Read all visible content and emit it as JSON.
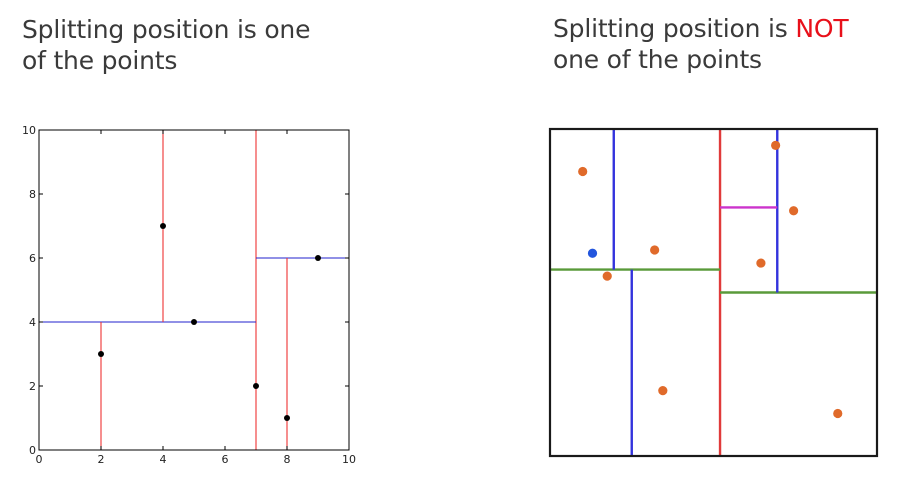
{
  "left_panel": {
    "title_line1": "Splitting position is one",
    "title_line2": "of the points",
    "chart_data": {
      "type": "scatter",
      "xlim": [
        0,
        10
      ],
      "ylim": [
        0,
        10
      ],
      "xticks": [
        "0",
        "2",
        "4",
        "6",
        "8",
        "10"
      ],
      "yticks": [
        "0",
        "2",
        "4",
        "6",
        "8",
        "10"
      ],
      "points": [
        {
          "x": 2,
          "y": 3
        },
        {
          "x": 4,
          "y": 7
        },
        {
          "x": 5,
          "y": 4
        },
        {
          "x": 7,
          "y": 2
        },
        {
          "x": 8,
          "y": 1
        },
        {
          "x": 9,
          "y": 6
        }
      ],
      "split_lines": [
        {
          "orient": "vertical",
          "at": 7,
          "from": 0,
          "to": 10,
          "color": "#ee3333"
        },
        {
          "orient": "horizontal",
          "at": 4,
          "from": 0,
          "to": 7,
          "color": "#2222cc"
        },
        {
          "orient": "horizontal",
          "at": 6,
          "from": 7,
          "to": 10,
          "color": "#2222cc"
        },
        {
          "orient": "vertical",
          "at": 2,
          "from": 0,
          "to": 4,
          "color": "#ee3333"
        },
        {
          "orient": "vertical",
          "at": 4,
          "from": 4,
          "to": 10,
          "color": "#ee3333"
        },
        {
          "orient": "vertical",
          "at": 8,
          "from": 0,
          "to": 6,
          "color": "#ee3333"
        }
      ],
      "point_color": "#000000"
    }
  },
  "right_panel": {
    "title_line1_prefix": "Splitting position is ",
    "title_line1_accent": "NOT",
    "title_line2": "one of the points",
    "accent_color": "#e8101a",
    "diagram": {
      "xlim": [
        0,
        10
      ],
      "ylim": [
        0,
        10
      ],
      "points": [
        {
          "x": 1.0,
          "y": 8.7,
          "color": "#e06a2a"
        },
        {
          "x": 1.3,
          "y": 6.2,
          "color": "#2255dd"
        },
        {
          "x": 1.75,
          "y": 5.5,
          "color": "#e06a2a"
        },
        {
          "x": 3.2,
          "y": 6.3,
          "color": "#e06a2a"
        },
        {
          "x": 3.45,
          "y": 2.0,
          "color": "#e06a2a"
        },
        {
          "x": 6.45,
          "y": 5.9,
          "color": "#e06a2a"
        },
        {
          "x": 6.9,
          "y": 9.5,
          "color": "#e06a2a"
        },
        {
          "x": 7.45,
          "y": 7.5,
          "color": "#e06a2a"
        },
        {
          "x": 8.8,
          "y": 1.3,
          "color": "#e06a2a"
        }
      ],
      "split_lines": [
        {
          "orient": "vertical",
          "at": 5.2,
          "from": 0,
          "to": 10,
          "color": "#e03a3a"
        },
        {
          "orient": "horizontal",
          "at": 5.7,
          "from": 0,
          "to": 5.2,
          "color": "#5a9a3a"
        },
        {
          "orient": "horizontal",
          "at": 5.0,
          "from": 5.2,
          "to": 10,
          "color": "#5a9a3a"
        },
        {
          "orient": "vertical",
          "at": 1.95,
          "from": 5.7,
          "to": 10,
          "color": "#3333dd"
        },
        {
          "orient": "vertical",
          "at": 2.5,
          "from": 0,
          "to": 5.7,
          "color": "#3333dd"
        },
        {
          "orient": "vertical",
          "at": 6.95,
          "from": 5.0,
          "to": 10,
          "color": "#3333dd"
        },
        {
          "orient": "horizontal",
          "at": 7.6,
          "from": 5.2,
          "to": 6.95,
          "color": "#cc33cc"
        }
      ]
    }
  }
}
